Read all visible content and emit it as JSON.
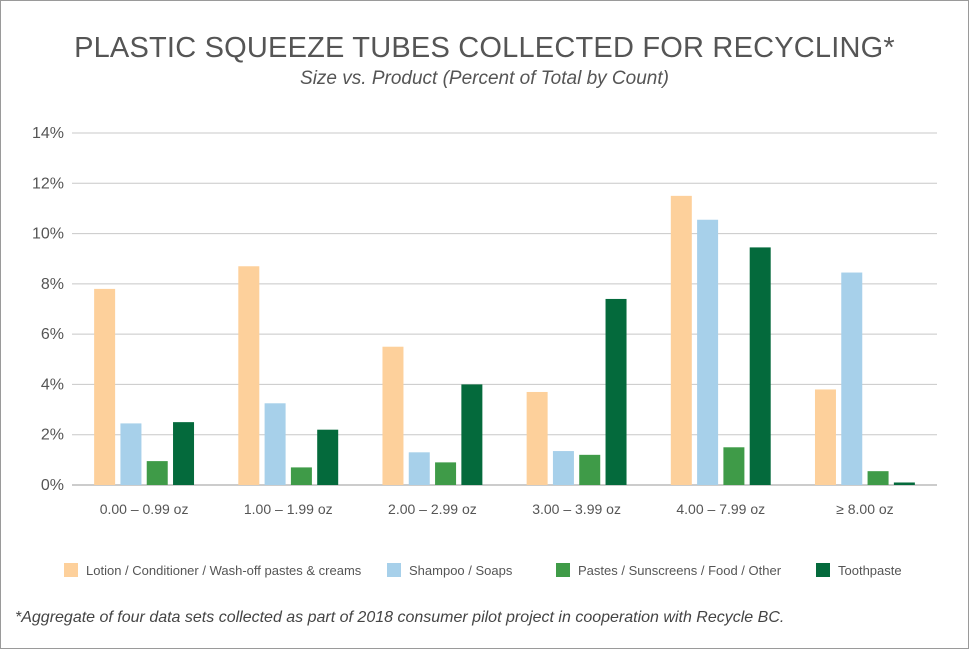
{
  "chart_data": {
    "type": "bar",
    "title": "PLASTIC SQUEEZE TUBES COLLECTED FOR RECYCLING*",
    "subtitle": "Size vs. Product (Percent of Total by Count)",
    "xlabel": "",
    "ylabel": "",
    "ylim": [
      0,
      14
    ],
    "yticks": [
      0,
      2,
      4,
      6,
      8,
      10,
      12,
      14
    ],
    "ytick_suffix": "%",
    "grid": true,
    "legend_position": "bottom",
    "categories": [
      "0.00 – 0.99 oz",
      "1.00 – 1.99 oz",
      "2.00 – 2.99 oz",
      "3.00 – 3.99 oz",
      "4.00 – 7.99 oz",
      "≥ 8.00 oz"
    ],
    "series": [
      {
        "name": "Lotion / Conditioner / Wash-off pastes & creams",
        "color": "#fdd09b",
        "values": [
          7.8,
          8.7,
          5.5,
          3.7,
          11.5,
          3.8
        ]
      },
      {
        "name": "Shampoo / Soaps",
        "color": "#a7d0ea",
        "values": [
          2.45,
          3.25,
          1.3,
          1.35,
          10.55,
          8.45
        ]
      },
      {
        "name": "Pastes / Sunscreens / Food / Other",
        "color": "#3f9b48",
        "values": [
          0.95,
          0.7,
          0.9,
          1.2,
          1.5,
          0.55
        ]
      },
      {
        "name": "Toothpaste",
        "color": "#046a3c",
        "values": [
          2.5,
          2.2,
          4.0,
          7.4,
          9.45,
          0.1
        ]
      }
    ],
    "footnote": "*Aggregate of four data sets collected as part of 2018 consumer pilot project in cooperation with Recycle BC."
  }
}
